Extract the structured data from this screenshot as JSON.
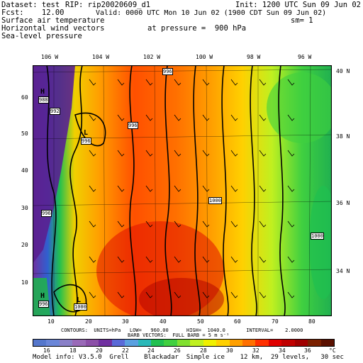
{
  "header": {
    "dataset": "Dataset: test",
    "rip": "RIP: rip20020609_d1",
    "init": "Init: 1200 UTC Sun 09 Jun 02",
    "fcst": "Fcst:    12.00",
    "valid": "Valid: 0000 UTC Mon 10 Jun 02 (1900 CDT Sun 09 Jun 02)",
    "field1": "Surface air temperature",
    "sm": "sm= 1",
    "field2": "Horizontal wind vectors",
    "pressure": "at pressure =  900 hPa",
    "field3": "Sea-level pressure"
  },
  "map": {
    "lon_labels": [
      "106 W",
      "104 W",
      "102 W",
      "100 W",
      "98 W",
      "96 W"
    ],
    "lat_labels": [
      "40 N",
      "38 N",
      "36 N",
      "34 N"
    ],
    "left_ticks": [
      "60",
      "50",
      "40",
      "30",
      "20",
      "10"
    ],
    "bottom_ticks": [
      "10",
      "20",
      "30",
      "40",
      "50",
      "60",
      "70",
      "80"
    ],
    "pressure_labels": [
      "988",
      "992",
      "996",
      "996",
      "996",
      "996",
      "1000",
      "1000",
      "996",
      "1000"
    ],
    "highs_lows": [
      "H",
      "L",
      "H",
      "L"
    ]
  },
  "footer": {
    "contours": "CONTOURS:  UNITS=hPa   LOW=   960.00      HIGH=  1040.0       INTERVAL=    2.0000",
    "barbs": "BARB VECTORS:  FULL BARB = 5 m s⁻¹",
    "colorbar_labels": [
      "16",
      "18",
      "20",
      "22",
      "24",
      "26",
      "28",
      "30",
      "32",
      "34",
      "36",
      "°C"
    ],
    "model_info": "Model info: V3.5.0  Grell    Blackadar  Simple ice    12 km,  29 levels,   30 sec"
  },
  "colorbar_colors": [
    "#5577cc",
    "#6a86d8",
    "#8a80c8",
    "#9a6ab8",
    "#8c50a8",
    "#7030a0",
    "#5a6ad8",
    "#5aa0e0",
    "#2ab8b8",
    "#20c050",
    "#40d040",
    "#80e030",
    "#c0f020",
    "#f0f000",
    "#ffd000",
    "#ffa000",
    "#ff7000",
    "#ff3000",
    "#e00000",
    "#c00000",
    "#a00000",
    "#7a2000",
    "#5a1000"
  ]
}
